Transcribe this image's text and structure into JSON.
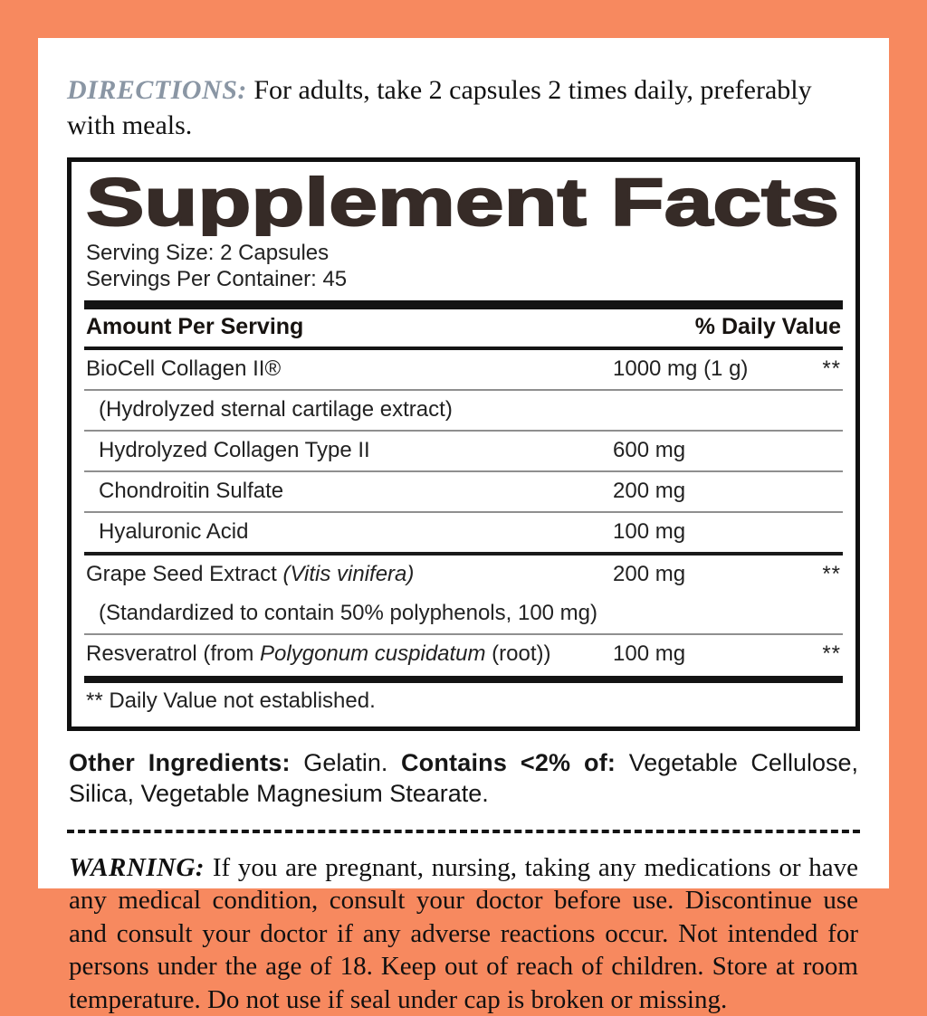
{
  "frame": {
    "accent_color": "#F7895F"
  },
  "directions": {
    "label": "DIRECTIONS:",
    "label_color": "#8A96A4",
    "text": " For adults, take 2 capsules 2 times daily, preferably with meals."
  },
  "panel": {
    "title": "Supplement Facts",
    "serving_size": "Serving Size: 2 Capsules",
    "servings_per_container": "Servings Per Container: 45",
    "header": {
      "amount_label": "Amount Per Serving",
      "daily_value_label": "% Daily Value"
    },
    "rows": [
      {
        "pre": "BioCell Collagen II®",
        "amount": "1000 mg (1 g)",
        "dv": "**"
      },
      {
        "pre": "(Hydrolyzed sternal cartilage extract)"
      },
      {
        "pre": "Hydrolyzed Collagen Type II",
        "amount": "600 mg"
      },
      {
        "pre": "Chondroitin Sulfate",
        "amount": "200 mg"
      },
      {
        "pre": "Hyaluronic Acid",
        "amount": "100 mg"
      },
      {
        "pre": "Grape Seed Extract ",
        "italic": "(Vitis vinifera)",
        "amount": "200 mg",
        "dv": "**"
      },
      {
        "pre": "(Standardized to contain 50% polyphenols, 100 mg)"
      },
      {
        "pre": "Resveratrol (from ",
        "italic": "Polygonum cuspidatum",
        "post": " (root))",
        "amount": "100 mg",
        "dv": "**"
      }
    ],
    "footnote": "** Daily Value not established."
  },
  "other_ingredients": {
    "label1": "Other Ingredients:",
    "text1": " Gelatin. ",
    "label2": "Contains <2% of:",
    "text2": " Vegetable Cellulose, Silica, Vegetable Magnesium Stearate."
  },
  "warning": {
    "label": "WARNING:",
    "text": " If you are pregnant, nursing, taking any medications or have any medical condition, consult your doctor before use. Discontinue use and consult your doctor if any adverse reactions occur. Not intended for persons under the age of 18. Keep out of reach of children. Store at room temperature. Do not use if seal under cap is broken or missing."
  }
}
